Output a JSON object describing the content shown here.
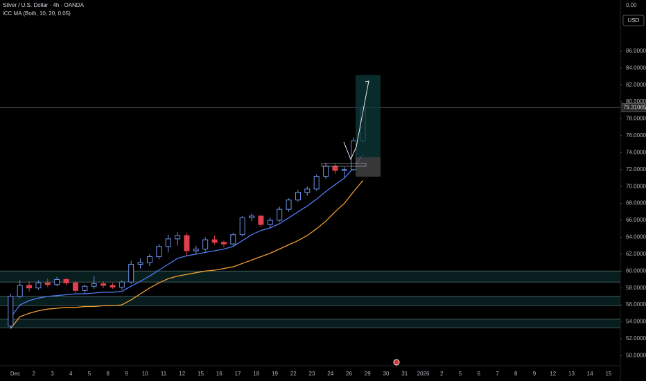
{
  "chart_data": {
    "type": "candlestick",
    "title": "Silver / U.S. Dollar · 4h · OANDA",
    "indicator": "iCC MA (Both, 10, 20, 0.05)",
    "currency": "USD",
    "top_label": "0.00",
    "ylim": [
      48.8,
      92.05
    ],
    "yticks": [
      {
        "value": 50,
        "label": "50.00000"
      },
      {
        "value": 52,
        "label": "52.00000"
      },
      {
        "value": 54,
        "label": "54.00000"
      },
      {
        "value": 56,
        "label": "56.00000"
      },
      {
        "value": 58,
        "label": "58.00000"
      },
      {
        "value": 60,
        "label": "60.00000"
      },
      {
        "value": 62,
        "label": "62.00000"
      },
      {
        "value": 64,
        "label": "64.00000"
      },
      {
        "value": 66,
        "label": "66.00000"
      },
      {
        "value": 68,
        "label": "68.00000"
      },
      {
        "value": 70,
        "label": "70.00000"
      },
      {
        "value": 72,
        "label": "72.00000"
      },
      {
        "value": 74,
        "label": "74.00000"
      },
      {
        "value": 76,
        "label": "76.00000"
      },
      {
        "value": 78,
        "label": "78.00000"
      },
      {
        "value": 80,
        "label": "80.00000"
      },
      {
        "value": 82,
        "label": "82.00000"
      },
      {
        "value": 84,
        "label": "84.00000"
      },
      {
        "value": 86,
        "label": "86.00000"
      }
    ],
    "categories": [
      "Dec",
      "2",
      "3",
      "4",
      "5",
      "8",
      "9",
      "10",
      "11",
      "12",
      "15",
      "16",
      "17",
      "18",
      "19",
      "22",
      "23",
      "24",
      "26",
      "29",
      "30",
      "31",
      "2026",
      "2",
      "5",
      "6",
      "7",
      "8",
      "9",
      "12",
      "13",
      "14",
      "15"
    ],
    "up_color": "#6d93ee",
    "down_color": "#e0404d",
    "candles": [
      [
        53.5,
        57.3,
        53.2,
        57.0
      ],
      [
        57.0,
        58.9,
        56.8,
        58.3
      ],
      [
        58.3,
        58.8,
        57.6,
        58.0
      ],
      [
        58.0,
        58.9,
        57.8,
        58.6
      ],
      [
        58.6,
        59.1,
        58.1,
        58.4
      ],
      [
        58.4,
        59.3,
        58.2,
        59.0
      ],
      [
        59.0,
        59.2,
        58.3,
        58.6
      ],
      [
        58.6,
        58.8,
        57.4,
        57.7
      ],
      [
        57.7,
        58.4,
        57.3,
        58.2
      ],
      [
        58.2,
        59.4,
        57.9,
        58.5
      ],
      [
        58.5,
        58.8,
        58.0,
        58.3
      ],
      [
        58.3,
        58.6,
        57.9,
        58.1
      ],
      [
        58.1,
        58.9,
        57.8,
        58.7
      ],
      [
        58.7,
        61.2,
        58.5,
        60.8
      ],
      [
        60.8,
        61.5,
        60.3,
        61.0
      ],
      [
        61.0,
        62.0,
        60.6,
        61.7
      ],
      [
        61.7,
        63.2,
        61.4,
        62.9
      ],
      [
        62.9,
        64.3,
        62.2,
        63.8
      ],
      [
        63.8,
        64.6,
        63.0,
        64.2
      ],
      [
        64.2,
        64.5,
        61.8,
        62.4
      ],
      [
        62.4,
        63.0,
        62.0,
        62.6
      ],
      [
        62.6,
        64.0,
        62.3,
        63.7
      ],
      [
        63.7,
        64.2,
        63.1,
        63.4
      ],
      [
        63.4,
        63.6,
        62.8,
        63.2
      ],
      [
        63.2,
        64.5,
        63.0,
        64.3
      ],
      [
        64.3,
        66.5,
        64.1,
        66.3
      ],
      [
        66.3,
        66.8,
        65.9,
        66.5
      ],
      [
        66.5,
        66.6,
        65.2,
        65.5
      ],
      [
        65.5,
        66.3,
        65.1,
        66.0
      ],
      [
        66.0,
        67.6,
        65.8,
        67.3
      ],
      [
        67.3,
        68.6,
        67.0,
        68.4
      ],
      [
        68.4,
        69.6,
        68.2,
        69.3
      ],
      [
        69.3,
        70.0,
        68.9,
        69.7
      ],
      [
        69.7,
        71.4,
        69.5,
        71.2
      ],
      [
        71.2,
        72.8,
        70.9,
        72.4
      ],
      [
        72.4,
        72.7,
        71.5,
        71.9
      ],
      [
        71.9,
        72.3,
        71.1,
        72.0
      ],
      [
        72.0,
        75.8,
        71.8,
        75.4
      ],
      [
        75.4,
        79.6,
        75.1,
        79.3
      ]
    ],
    "ma": [
      {
        "color": "#4f7df0",
        "values": [
          54.5,
          56.0,
          56.5,
          56.8,
          57.0,
          57.1,
          57.2,
          57.3,
          57.3,
          57.4,
          57.5,
          57.5,
          57.6,
          58.2,
          58.8,
          59.4,
          60.1,
          60.8,
          61.5,
          61.8,
          62.0,
          62.2,
          62.4,
          62.6,
          62.9,
          63.6,
          64.3,
          64.8,
          65.1,
          65.6,
          66.3,
          67.0,
          67.7,
          68.5,
          69.4,
          70.2,
          71.0,
          72.2,
          73.8
        ]
      },
      {
        "color": "#f0a030",
        "values": [
          53.2,
          54.6,
          55.0,
          55.3,
          55.5,
          55.6,
          55.7,
          55.7,
          55.8,
          55.8,
          55.9,
          55.9,
          56.0,
          56.6,
          57.3,
          58.0,
          58.6,
          59.1,
          59.4,
          59.6,
          59.8,
          60.0,
          60.1,
          60.3,
          60.5,
          60.9,
          61.3,
          61.7,
          62.1,
          62.6,
          63.1,
          63.6,
          64.2,
          65.0,
          65.9,
          67.0,
          68.0,
          69.4,
          70.7
        ]
      }
    ],
    "zones": [
      [
        58.7,
        60.0
      ],
      [
        55.9,
        57.0
      ],
      [
        53.3,
        54.3
      ]
    ],
    "last_price": 79.31065
  }
}
